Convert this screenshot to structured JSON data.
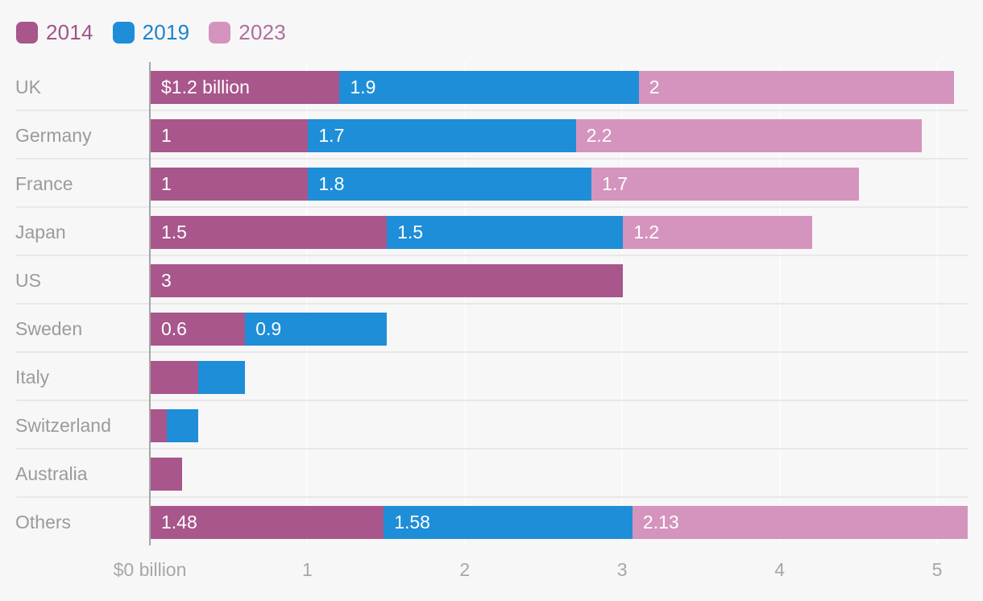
{
  "chart": {
    "background_color": "#f7f7f7",
    "gridline_color": "#fcfcfc",
    "separator_color": "#e8e8e8",
    "axis_line_color": "#a5a5a5",
    "row_label_color": "#9b9b9b",
    "tick_label_color": "#a7a7a7"
  },
  "chart_data": {
    "type": "bar",
    "orientation": "horizontal",
    "stacked": true,
    "title": "",
    "xlabel": "",
    "ylabel": "",
    "xlim": [
      0,
      5.2
    ],
    "grid": true,
    "legend_position": "top-left",
    "x_tick_values": [
      0,
      1,
      2,
      3,
      4,
      5
    ],
    "x_ticks": [
      "$0 billion",
      "1",
      "2",
      "3",
      "4",
      "5"
    ],
    "categories": [
      "UK",
      "Germany",
      "France",
      "Japan",
      "US",
      "Sweden",
      "Italy",
      "Switzerland",
      "Australia",
      "Others"
    ],
    "series": [
      {
        "name": "2014",
        "color": "#a8568b",
        "label_color": "#a3538a",
        "values": [
          1.2,
          1,
          1,
          1.5,
          3,
          0.6,
          0.3,
          0.1,
          0.2,
          1.48
        ],
        "labels": [
          "$1.2 billion",
          "1",
          "1",
          "1.5",
          "3",
          "0.6",
          "",
          "",
          "",
          "1.48"
        ]
      },
      {
        "name": "2019",
        "color": "#1e8ed8",
        "label_color": "#1d83cb",
        "values": [
          1.9,
          1.7,
          1.8,
          1.5,
          0,
          0.9,
          0.3,
          0.2,
          0,
          1.58
        ],
        "labels": [
          "1.9",
          "1.7",
          "1.8",
          "1.5",
          "",
          "0.9",
          "",
          "",
          "",
          "1.58"
        ]
      },
      {
        "name": "2023",
        "color": "#d494be",
        "label_color": "#af6fa2",
        "values": [
          2,
          2.2,
          1.7,
          1.2,
          0,
          0,
          0,
          0,
          0,
          2.13
        ],
        "labels": [
          "2",
          "2.2",
          "1.7",
          "1.2",
          "",
          "",
          "",
          "",
          "",
          "2.13"
        ]
      }
    ]
  }
}
